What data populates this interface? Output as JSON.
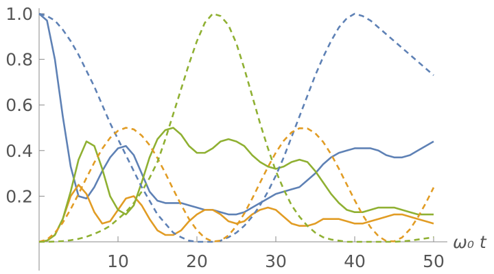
{
  "chart_data": {
    "type": "line",
    "x_label": "ω₀ t",
    "x": [
      0,
      1,
      2,
      3,
      4,
      5,
      6,
      7,
      8,
      9,
      10,
      11,
      12,
      13,
      14,
      15,
      16,
      17,
      18,
      19,
      20,
      21,
      22,
      23,
      24,
      25,
      26,
      27,
      28,
      29,
      30,
      31,
      32,
      33,
      34,
      35,
      36,
      37,
      38,
      39,
      40,
      41,
      42,
      43,
      44,
      45,
      46,
      47,
      48,
      49,
      50
    ],
    "xlim": [
      0,
      50
    ],
    "xticks": [
      10,
      20,
      30,
      40,
      50
    ],
    "ylim": [
      0,
      1
    ],
    "yticks": [
      0.2,
      0.4,
      0.6,
      0.8,
      {
        "value": 1,
        "label": "1.0"
      }
    ],
    "series": [
      {
        "color": "#5e81b5",
        "dashed": false,
        "values": [
          1.0,
          0.97,
          0.8,
          0.55,
          0.33,
          0.2,
          0.19,
          0.24,
          0.31,
          0.37,
          0.41,
          0.42,
          0.38,
          0.3,
          0.22,
          0.18,
          0.17,
          0.17,
          0.17,
          0.16,
          0.15,
          0.14,
          0.14,
          0.13,
          0.12,
          0.12,
          0.13,
          0.15,
          0.17,
          0.19,
          0.21,
          0.22,
          0.23,
          0.24,
          0.27,
          0.3,
          0.34,
          0.37,
          0.39,
          0.4,
          0.41,
          0.41,
          0.41,
          0.4,
          0.38,
          0.37,
          0.37,
          0.38,
          0.4,
          0.42,
          0.44
        ]
      },
      {
        "color": "#e19c24",
        "dashed": false,
        "values": [
          0,
          0.005,
          0.03,
          0.1,
          0.2,
          0.25,
          0.21,
          0.13,
          0.08,
          0.09,
          0.14,
          0.19,
          0.2,
          0.16,
          0.1,
          0.05,
          0.03,
          0.03,
          0.05,
          0.09,
          0.12,
          0.14,
          0.14,
          0.12,
          0.09,
          0.08,
          0.09,
          0.12,
          0.14,
          0.15,
          0.14,
          0.11,
          0.08,
          0.07,
          0.07,
          0.08,
          0.1,
          0.1,
          0.1,
          0.09,
          0.08,
          0.08,
          0.09,
          0.1,
          0.11,
          0.12,
          0.12,
          0.11,
          0.1,
          0.09,
          0.08
        ]
      },
      {
        "color": "#8fb032",
        "dashed": false,
        "values": [
          0,
          0.005,
          0.03,
          0.1,
          0.22,
          0.36,
          0.44,
          0.42,
          0.32,
          0.2,
          0.14,
          0.12,
          0.16,
          0.26,
          0.37,
          0.45,
          0.49,
          0.5,
          0.47,
          0.42,
          0.39,
          0.39,
          0.41,
          0.44,
          0.45,
          0.44,
          0.42,
          0.38,
          0.35,
          0.33,
          0.32,
          0.33,
          0.35,
          0.36,
          0.35,
          0.31,
          0.26,
          0.21,
          0.17,
          0.14,
          0.13,
          0.13,
          0.14,
          0.15,
          0.15,
          0.15,
          0.14,
          0.13,
          0.12,
          0.12,
          0.12
        ]
      },
      {
        "color": "#5e81b5",
        "dashed": true,
        "values": [
          1.0,
          0.99,
          0.97,
          0.93,
          0.88,
          0.82,
          0.75,
          0.68,
          0.6,
          0.52,
          0.45,
          0.38,
          0.31,
          0.24,
          0.18,
          0.12,
          0.08,
          0.04,
          0.02,
          0.005,
          0,
          0,
          0,
          0.005,
          0.02,
          0.04,
          0.07,
          0.11,
          0.16,
          0.22,
          0.29,
          0.37,
          0.46,
          0.55,
          0.64,
          0.73,
          0.81,
          0.88,
          0.94,
          0.98,
          1.0,
          0.99,
          0.97,
          0.94,
          0.91,
          0.88,
          0.85,
          0.82,
          0.79,
          0.76,
          0.73
        ]
      },
      {
        "color": "#e19c24",
        "dashed": true,
        "values": [
          0,
          0.01,
          0.039,
          0.084,
          0.143,
          0.21,
          0.28,
          0.348,
          0.408,
          0.456,
          0.487,
          0.5,
          0.493,
          0.466,
          0.424,
          0.367,
          0.301,
          0.23,
          0.162,
          0.1,
          0.051,
          0.017,
          0.001,
          0.005,
          0.028,
          0.069,
          0.124,
          0.189,
          0.259,
          0.328,
          0.391,
          0.443,
          0.48,
          0.498,
          0.497,
          0.476,
          0.438,
          0.384,
          0.32,
          0.251,
          0.182,
          0.118,
          0.064,
          0.025,
          0.003,
          0.002,
          0.019,
          0.055,
          0.107,
          0.169,
          0.238
        ]
      },
      {
        "color": "#8fb032",
        "dashed": true,
        "values": [
          0,
          0,
          0.001,
          0.003,
          0.007,
          0.013,
          0.022,
          0.035,
          0.05,
          0.07,
          0.1,
          0.13,
          0.17,
          0.22,
          0.28,
          0.35,
          0.45,
          0.56,
          0.67,
          0.78,
          0.88,
          0.96,
          1.0,
          0.99,
          0.95,
          0.87,
          0.76,
          0.64,
          0.52,
          0.41,
          0.31,
          0.23,
          0.16,
          0.11,
          0.07,
          0.04,
          0.02,
          0.01,
          0.005,
          0,
          0,
          0,
          0,
          0,
          0,
          0,
          0.002,
          0.005,
          0.01,
          0.015,
          0.02
        ]
      }
    ]
  }
}
